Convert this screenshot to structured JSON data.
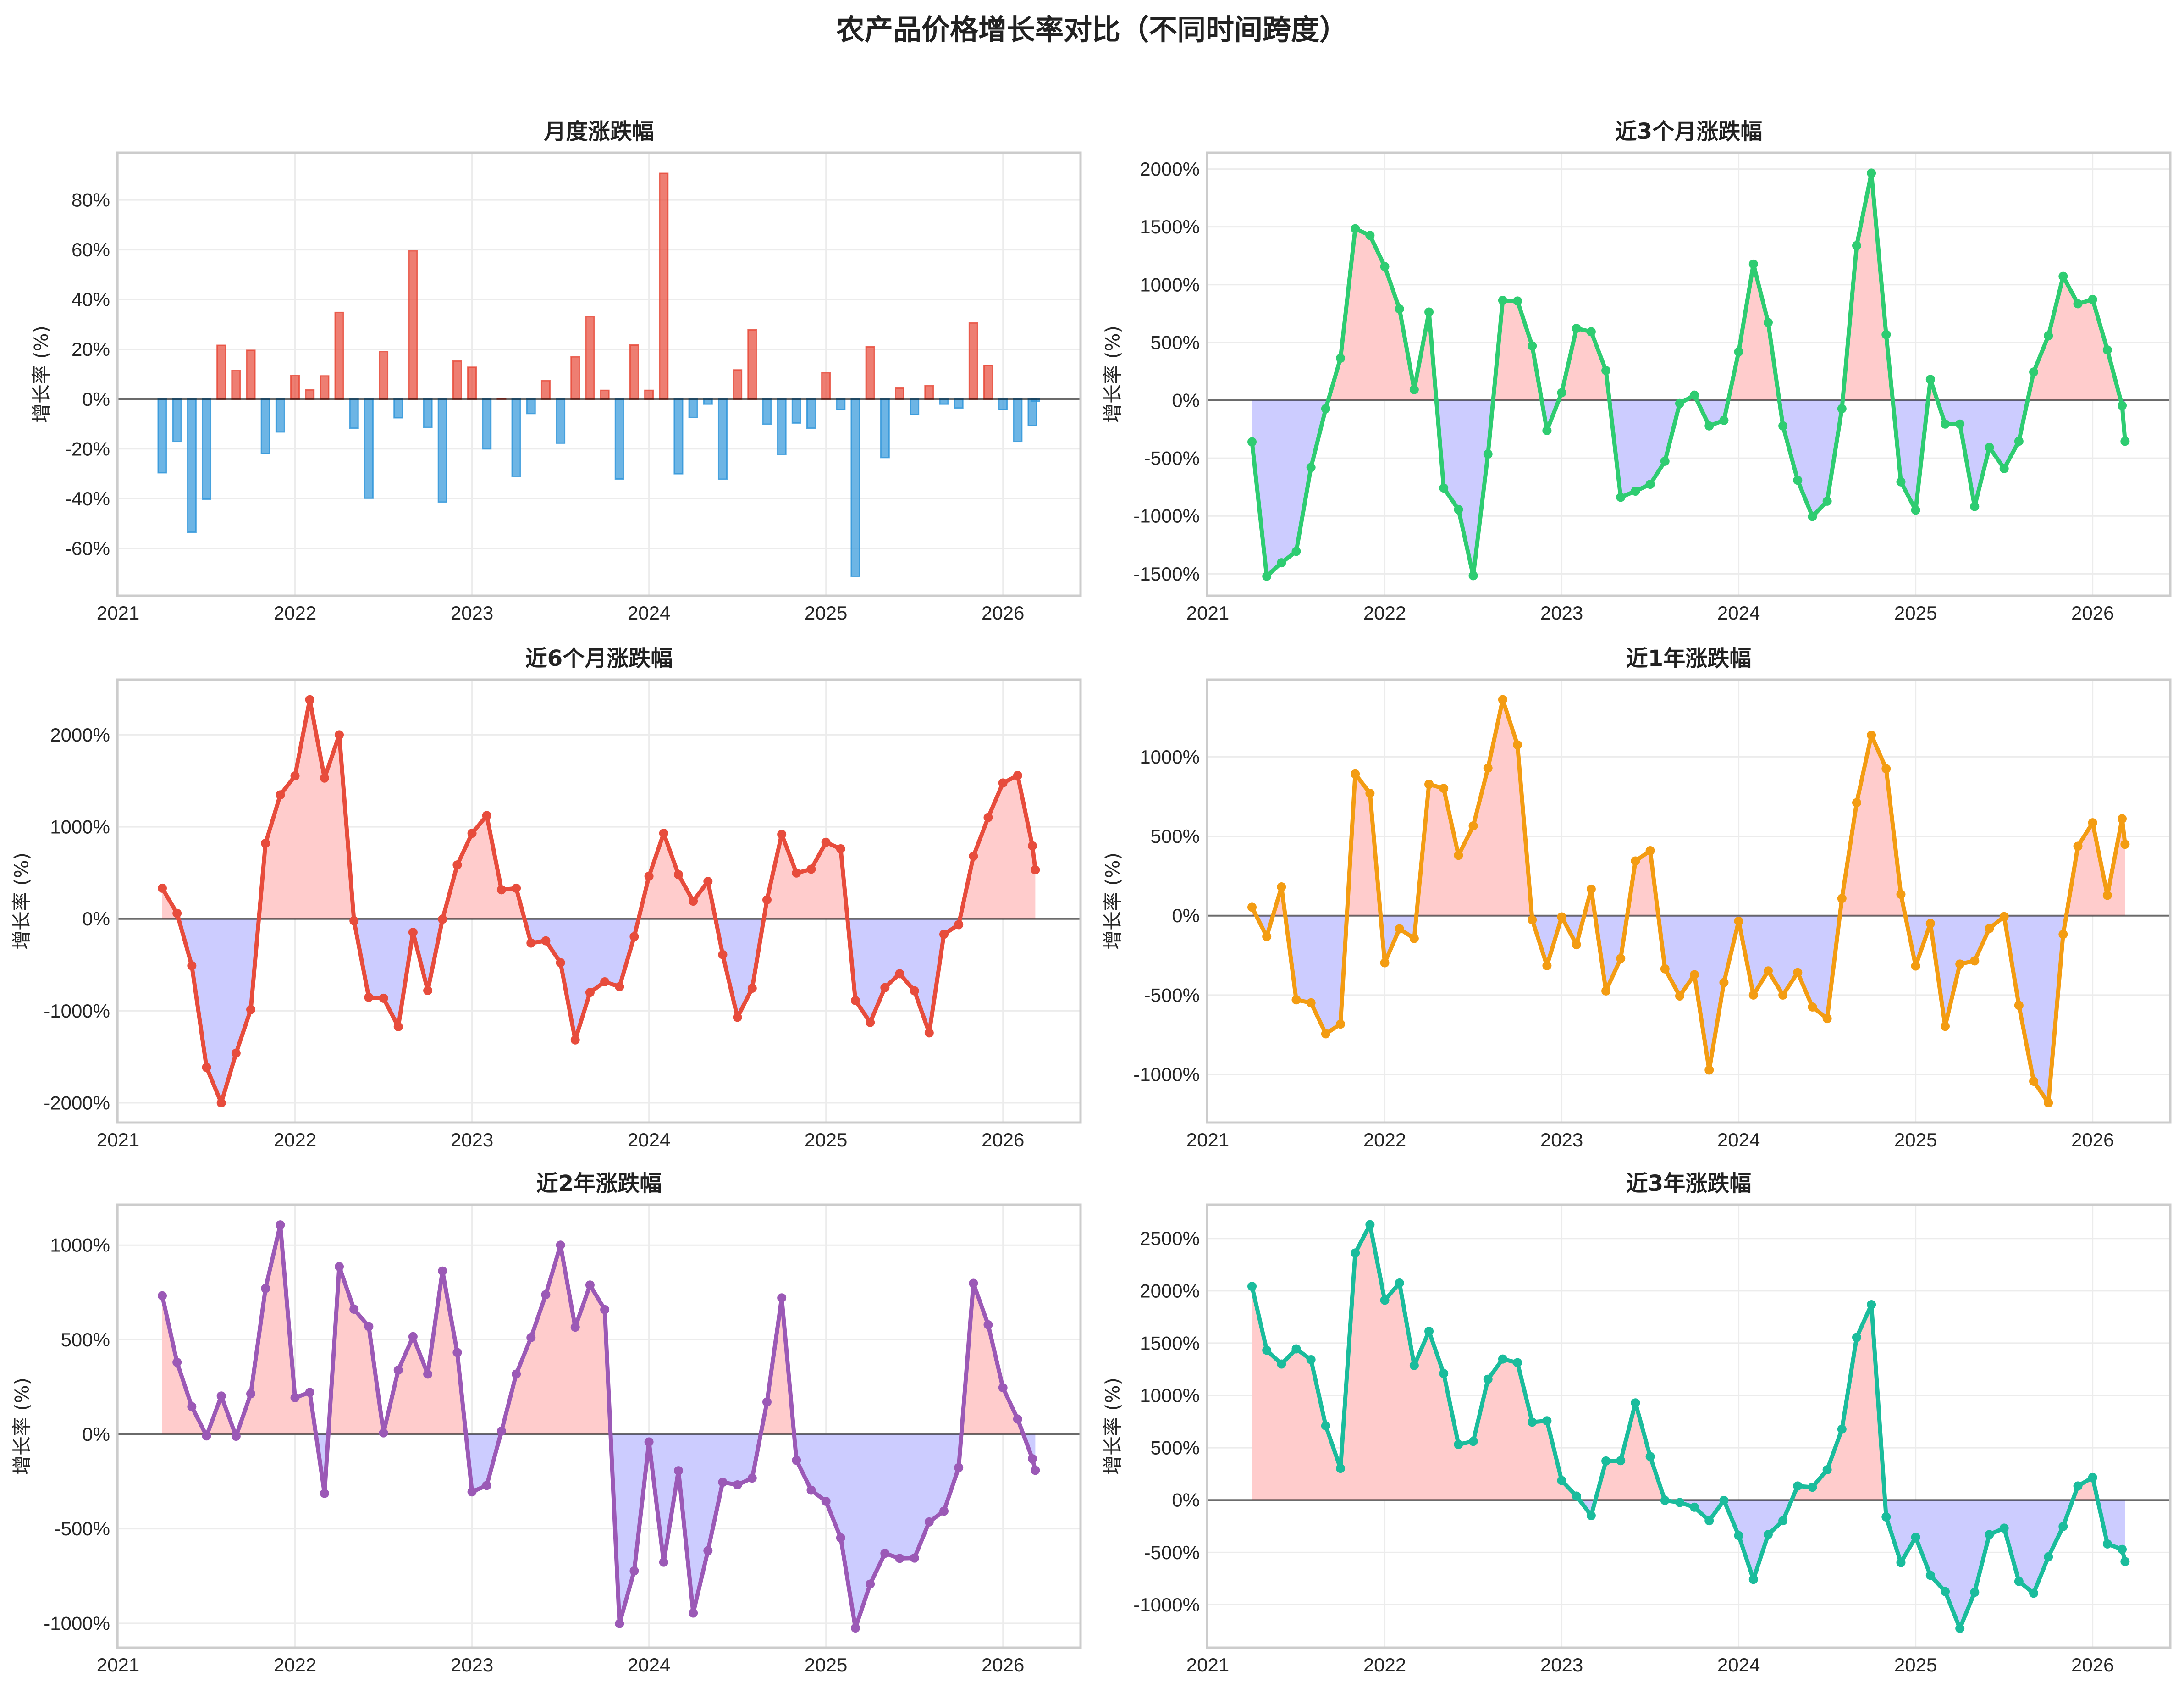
{
  "figure_title": "农产品价格增长率对比（不同时间跨度）",
  "chart_data": [
    {
      "type": "bar",
      "title": "月度涨跌幅",
      "xlabel": "",
      "ylabel": "增长率 (%)",
      "x": [
        "2021-04",
        "2021-05",
        "2021-06",
        "2021-07",
        "2021-08",
        "2021-09",
        "2021-10",
        "2021-11",
        "2021-12",
        "2022-01",
        "2022-02",
        "2022-03",
        "2022-04",
        "2022-05",
        "2022-06",
        "2022-07",
        "2022-08",
        "2022-09",
        "2022-10",
        "2022-11",
        "2022-12",
        "2023-01",
        "2023-02",
        "2023-03",
        "2023-04",
        "2023-05",
        "2023-06",
        "2023-07",
        "2023-08",
        "2023-09",
        "2023-10",
        "2023-11",
        "2023-12",
        "2024-01",
        "2024-02",
        "2024-03",
        "2024-04",
        "2024-05",
        "2024-06",
        "2024-07",
        "2024-08",
        "2024-09",
        "2024-10",
        "2024-11",
        "2024-12",
        "2025-01",
        "2025-02",
        "2025-03",
        "2025-04",
        "2025-05",
        "2025-06",
        "2025-07",
        "2025-08",
        "2025-09",
        "2025-10",
        "2025-11",
        "2025-12",
        "2026-01",
        "2026-02",
        "2026-03",
        "2026-03-07"
      ],
      "values": [
        -29.6,
        -17,
        -53.5,
        -40.2,
        21.6,
        11.5,
        19.6,
        -21.9,
        -13.2,
        9.5,
        3.7,
        9.3,
        34.8,
        -11.7,
        -39.8,
        19.1,
        -7.5,
        59.6,
        -11.4,
        -41.4,
        15.3,
        12.8,
        -20,
        0.3,
        -31.1,
        -5.8,
        7.4,
        -17.7,
        17,
        33.1,
        3.5,
        -32.1,
        21.7,
        3.5,
        90.7,
        -30,
        -7.4,
        -2,
        -32.2,
        11.7,
        27.8,
        -10.1,
        -22.2,
        -9.6,
        -11.7,
        10.6,
        -4.2,
        -71.2,
        21,
        -23.5,
        4.4,
        -6.3,
        5.4,
        -2,
        -3.6,
        30.6,
        13.5,
        -4.2,
        -17,
        -10.6,
        -0.9
      ],
      "colors": {
        "positive": "#e74c3c",
        "negative": "#3498db"
      },
      "xlim": [
        "2020-12-30",
        "2026-06-09"
      ],
      "ylim": [
        -79,
        99
      ],
      "yticks": [
        -60,
        -40,
        -20,
        0,
        20,
        40,
        60,
        80
      ],
      "ytick_labels": [
        "-60%",
        "-40%",
        "-20%",
        "0%",
        "20%",
        "40%",
        "60%",
        "80%"
      ],
      "xticks": [
        "2021-01",
        "2022-01",
        "2023-01",
        "2024-01",
        "2025-01",
        "2026-01"
      ],
      "xtick_labels": [
        "2021",
        "2022",
        "2023",
        "2024",
        "2025",
        "2026"
      ],
      "grid": true,
      "zero_line": true
    },
    {
      "type": "line",
      "title": "近3个月涨跌幅",
      "xlabel": "",
      "ylabel": "增长率 (%)",
      "x": [
        "2021-04",
        "2021-05",
        "2021-06",
        "2021-07",
        "2021-08",
        "2021-09",
        "2021-10",
        "2021-11",
        "2021-12",
        "2022-01",
        "2022-02",
        "2022-03",
        "2022-04",
        "2022-05",
        "2022-06",
        "2022-07",
        "2022-08",
        "2022-09",
        "2022-10",
        "2022-11",
        "2022-12",
        "2023-01",
        "2023-02",
        "2023-03",
        "2023-04",
        "2023-05",
        "2023-06",
        "2023-07",
        "2023-08",
        "2023-09",
        "2023-10",
        "2023-11",
        "2023-12",
        "2024-01",
        "2024-02",
        "2024-03",
        "2024-04",
        "2024-05",
        "2024-06",
        "2024-07",
        "2024-08",
        "2024-09",
        "2024-10",
        "2024-11",
        "2024-12",
        "2025-01",
        "2025-02",
        "2025-03",
        "2025-04",
        "2025-05",
        "2025-06",
        "2025-07",
        "2025-08",
        "2025-09",
        "2025-10",
        "2025-11",
        "2025-12",
        "2026-01",
        "2026-02",
        "2026-03",
        "2026-03-07"
      ],
      "values": [
        -359,
        -1521,
        -1404,
        -1306,
        -580,
        -72,
        364,
        1484,
        1426,
        1157,
        790,
        93,
        763,
        -758,
        -944,
        -1516,
        -465,
        864,
        859,
        471,
        -261,
        66,
        622,
        593,
        258,
        -838,
        -785,
        -726,
        -527,
        -27,
        45,
        -221,
        -173,
        420,
        1178,
        673,
        -221,
        -691,
        -1005,
        -872,
        -72,
        1338,
        1965,
        569,
        -705,
        -949,
        181,
        -205,
        -205,
        -918,
        -407,
        -590,
        -354,
        245,
        559,
        1072,
        835,
        872,
        436,
        -45,
        -354
      ],
      "color": "#2ecc71",
      "fill_positive": "#ffcccc",
      "fill_negative": "#ccccff",
      "xlim": [
        "2020-12-30",
        "2026-06-09"
      ],
      "ylim": [
        -1689,
        2141
      ],
      "yticks": [
        -1500,
        -1000,
        -500,
        0,
        500,
        1000,
        1500,
        2000
      ],
      "ytick_labels": [
        "-1500%",
        "-1000%",
        "-500%",
        "0%",
        "500%",
        "1000%",
        "1500%",
        "2000%"
      ],
      "xticks": [
        "2021-01",
        "2022-01",
        "2023-01",
        "2024-01",
        "2025-01",
        "2026-01"
      ],
      "xtick_labels": [
        "2021",
        "2022",
        "2023",
        "2024",
        "2025",
        "2026"
      ],
      "grid": true,
      "zero_line": true
    },
    {
      "type": "line",
      "title": "近6个月涨跌幅",
      "xlabel": "",
      "ylabel": "增长率 (%)",
      "x": [
        "2021-04",
        "2021-05",
        "2021-06",
        "2021-07",
        "2021-08",
        "2021-09",
        "2021-10",
        "2021-11",
        "2021-12",
        "2022-01",
        "2022-02",
        "2022-03",
        "2022-04",
        "2022-05",
        "2022-06",
        "2022-07",
        "2022-08",
        "2022-09",
        "2022-10",
        "2022-11",
        "2022-12",
        "2023-01",
        "2023-02",
        "2023-03",
        "2023-04",
        "2023-05",
        "2023-06",
        "2023-07",
        "2023-08",
        "2023-09",
        "2023-10",
        "2023-11",
        "2023-12",
        "2024-01",
        "2024-02",
        "2024-03",
        "2024-04",
        "2024-05",
        "2024-06",
        "2024-07",
        "2024-08",
        "2024-09",
        "2024-10",
        "2024-11",
        "2024-12",
        "2025-01",
        "2025-02",
        "2025-03",
        "2025-04",
        "2025-05",
        "2025-06",
        "2025-07",
        "2025-08",
        "2025-09",
        "2025-10",
        "2025-11",
        "2025-12",
        "2026-01",
        "2026-02",
        "2026-03",
        "2026-03-07"
      ],
      "values": [
        333,
        60,
        -509,
        -1614,
        -2000,
        -1460,
        -986,
        821,
        1347,
        1554,
        2382,
        1530,
        2000,
        -21,
        -853,
        -863,
        -1172,
        -147,
        -779,
        -4,
        586,
        930,
        1123,
        316,
        333,
        -263,
        -239,
        -477,
        -1316,
        -800,
        -684,
        -737,
        -193,
        463,
        930,
        481,
        193,
        407,
        -389,
        -1070,
        -754,
        207,
        919,
        498,
        540,
        832,
        761,
        -888,
        -1126,
        -747,
        -596,
        -782,
        -1239,
        -168,
        -63,
        681,
        1102,
        1477,
        1558,
        793,
        533
      ],
      "color": "#e74c3c",
      "fill_positive": "#ffcccc",
      "fill_negative": "#ccccff",
      "xlim": [
        "2020-12-30",
        "2026-06-09"
      ],
      "ylim": [
        -2214,
        2600
      ],
      "yticks": [
        -2000,
        -1000,
        0,
        1000,
        2000
      ],
      "ytick_labels": [
        "-2000%",
        "-1000%",
        "0%",
        "1000%",
        "2000%"
      ],
      "xticks": [
        "2021-01",
        "2022-01",
        "2023-01",
        "2024-01",
        "2025-01",
        "2026-01"
      ],
      "xtick_labels": [
        "2021",
        "2022",
        "2023",
        "2024",
        "2025",
        "2026"
      ],
      "grid": true,
      "zero_line": true
    },
    {
      "type": "line",
      "title": "近1年涨跌幅",
      "xlabel": "",
      "ylabel": "增长率 (%)",
      "x": [
        "2021-04",
        "2021-05",
        "2021-06",
        "2021-07",
        "2021-08",
        "2021-09",
        "2021-10",
        "2021-11",
        "2021-12",
        "2022-01",
        "2022-02",
        "2022-03",
        "2022-04",
        "2022-05",
        "2022-06",
        "2022-07",
        "2022-08",
        "2022-09",
        "2022-10",
        "2022-11",
        "2022-12",
        "2023-01",
        "2023-02",
        "2023-03",
        "2023-04",
        "2023-05",
        "2023-06",
        "2023-07",
        "2023-08",
        "2023-09",
        "2023-10",
        "2023-11",
        "2023-12",
        "2024-01",
        "2024-02",
        "2024-03",
        "2024-04",
        "2024-05",
        "2024-06",
        "2024-07",
        "2024-08",
        "2024-09",
        "2024-10",
        "2024-11",
        "2024-12",
        "2025-01",
        "2025-02",
        "2025-03",
        "2025-04",
        "2025-05",
        "2025-06",
        "2025-07",
        "2025-08",
        "2025-09",
        "2025-10",
        "2025-11",
        "2025-12",
        "2026-01",
        "2026-02",
        "2026-03",
        "2026-03-07"
      ],
      "values": [
        53,
        -132,
        181,
        -530,
        -549,
        -744,
        -683,
        892,
        770,
        -297,
        -83,
        -144,
        827,
        801,
        380,
        565,
        929,
        1360,
        1075,
        -26,
        -315,
        -8,
        -183,
        167,
        -474,
        -270,
        344,
        409,
        -335,
        -506,
        -372,
        -972,
        -421,
        -35,
        -500,
        -348,
        -500,
        -358,
        -575,
        -648,
        108,
        711,
        1136,
        925,
        134,
        -317,
        -49,
        -697,
        -305,
        -285,
        -81,
        -6,
        -565,
        -1043,
        -1179,
        -118,
        437,
        585,
        128,
        610,
        449
      ],
      "color": "#f39c12",
      "fill_positive": "#ffcccc",
      "fill_negative": "#ccccff",
      "xlim": [
        "2020-12-30",
        "2026-06-09"
      ],
      "ylim": [
        -1303,
        1486
      ],
      "yticks": [
        -1000,
        -500,
        0,
        500,
        1000
      ],
      "ytick_labels": [
        "-1000%",
        "-500%",
        "0%",
        "500%",
        "1000%"
      ],
      "xticks": [
        "2021-01",
        "2022-01",
        "2023-01",
        "2024-01",
        "2025-01",
        "2026-01"
      ],
      "xtick_labels": [
        "2021",
        "2022",
        "2023",
        "2024",
        "2025",
        "2026"
      ],
      "grid": true,
      "zero_line": true
    },
    {
      "type": "line",
      "title": "近2年涨跌幅",
      "xlabel": "",
      "ylabel": "增长率 (%)",
      "x": [
        "2021-04",
        "2021-05",
        "2021-06",
        "2021-07",
        "2021-08",
        "2021-09",
        "2021-10",
        "2021-11",
        "2021-12",
        "2022-01",
        "2022-02",
        "2022-03",
        "2022-04",
        "2022-05",
        "2022-06",
        "2022-07",
        "2022-08",
        "2022-09",
        "2022-10",
        "2022-11",
        "2022-12",
        "2023-01",
        "2023-02",
        "2023-03",
        "2023-04",
        "2023-05",
        "2023-06",
        "2023-07",
        "2023-08",
        "2023-09",
        "2023-10",
        "2023-11",
        "2023-12",
        "2024-01",
        "2024-02",
        "2024-03",
        "2024-04",
        "2024-05",
        "2024-06",
        "2024-07",
        "2024-08",
        "2024-09",
        "2024-10",
        "2024-11",
        "2024-12",
        "2025-01",
        "2025-02",
        "2025-03",
        "2025-04",
        "2025-05",
        "2025-06",
        "2025-07",
        "2025-08",
        "2025-09",
        "2025-10",
        "2025-11",
        "2025-12",
        "2026-01",
        "2026-02",
        "2026-03",
        "2026-03-07"
      ],
      "values": [
        732,
        380,
        146,
        -9,
        202,
        -11,
        214,
        771,
        1107,
        193,
        221,
        -313,
        886,
        661,
        570,
        7,
        339,
        516,
        318,
        863,
        432,
        -305,
        -271,
        16,
        318,
        511,
        738,
        1000,
        566,
        789,
        659,
        -1002,
        -723,
        -41,
        -677,
        -193,
        -946,
        -616,
        -254,
        -268,
        -232,
        170,
        721,
        -138,
        -296,
        -355,
        -548,
        -1025,
        -793,
        -630,
        -657,
        -655,
        -464,
        -407,
        -177,
        798,
        579,
        246,
        80,
        -130,
        -191
      ],
      "color": "#9b59b6",
      "fill_positive": "#ffcccc",
      "fill_negative": "#ccccff",
      "xlim": [
        "2020-12-30",
        "2026-06-09"
      ],
      "ylim": [
        -1129,
        1214
      ],
      "yticks": [
        -1000,
        -500,
        0,
        500,
        1000
      ],
      "ytick_labels": [
        "-1000%",
        "-500%",
        "0%",
        "500%",
        "1000%"
      ],
      "xticks": [
        "2021-01",
        "2022-01",
        "2023-01",
        "2024-01",
        "2025-01",
        "2026-01"
      ],
      "xtick_labels": [
        "2021",
        "2022",
        "2023",
        "2024",
        "2025",
        "2026"
      ],
      "grid": true,
      "zero_line": true
    },
    {
      "type": "line",
      "title": "近3年涨跌幅",
      "xlabel": "",
      "ylabel": "增长率 (%)",
      "x": [
        "2021-04",
        "2021-05",
        "2021-06",
        "2021-07",
        "2021-08",
        "2021-09",
        "2021-10",
        "2021-11",
        "2021-12",
        "2022-01",
        "2022-02",
        "2022-03",
        "2022-04",
        "2022-05",
        "2022-06",
        "2022-07",
        "2022-08",
        "2022-09",
        "2022-10",
        "2022-11",
        "2022-12",
        "2023-01",
        "2023-02",
        "2023-03",
        "2023-04",
        "2023-05",
        "2023-06",
        "2023-07",
        "2023-08",
        "2023-09",
        "2023-10",
        "2023-11",
        "2023-12",
        "2024-01",
        "2024-02",
        "2024-03",
        "2024-04",
        "2024-05",
        "2024-06",
        "2024-07",
        "2024-08",
        "2024-09",
        "2024-10",
        "2024-11",
        "2024-12",
        "2025-01",
        "2025-02",
        "2025-03",
        "2025-04",
        "2025-05",
        "2025-06",
        "2025-07",
        "2025-08",
        "2025-09",
        "2025-10",
        "2025-11",
        "2025-12",
        "2026-01",
        "2026-02",
        "2026-03",
        "2026-03-07"
      ],
      "values": [
        2042,
        1432,
        1300,
        1445,
        1342,
        710,
        303,
        2361,
        2632,
        1910,
        2074,
        1287,
        1613,
        1210,
        532,
        561,
        1155,
        1348,
        1313,
        745,
        758,
        187,
        39,
        -148,
        374,
        377,
        929,
        416,
        -3,
        -23,
        -68,
        -197,
        -3,
        -339,
        -758,
        -329,
        -197,
        135,
        123,
        290,
        677,
        1555,
        1868,
        -161,
        -597,
        -355,
        -719,
        -874,
        -1226,
        -881,
        -329,
        -268,
        -777,
        -890,
        -542,
        -252,
        135,
        216,
        -419,
        -471,
        -587
      ],
      "color": "#1abc9c",
      "fill_positive": "#ffcccc",
      "fill_negative": "#ccccff",
      "xlim": [
        "2020-12-30",
        "2026-06-09"
      ],
      "ylim": [
        -1410,
        2823
      ],
      "yticks": [
        -1000,
        -500,
        0,
        500,
        1000,
        1500,
        2000,
        2500
      ],
      "ytick_labels": [
        "-1000%",
        "-500%",
        "0%",
        "500%",
        "1000%",
        "1500%",
        "2000%",
        "2500%"
      ],
      "xticks": [
        "2021-01",
        "2022-01",
        "2023-01",
        "2024-01",
        "2025-01",
        "2026-01"
      ],
      "xtick_labels": [
        "2021",
        "2022",
        "2023",
        "2024",
        "2025",
        "2026"
      ],
      "grid": true,
      "zero_line": true
    }
  ]
}
